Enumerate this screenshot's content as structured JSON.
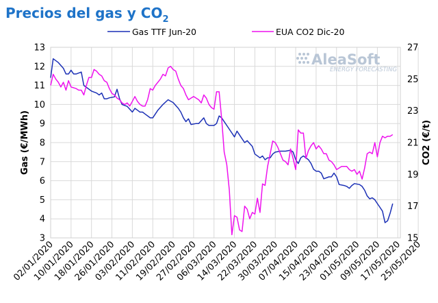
{
  "title": {
    "main": "Precios del gas y CO",
    "subscript": "2"
  },
  "branding": {
    "logo_text": "AleaSoft",
    "logo_tagline": "ENERGY FORECASTING"
  },
  "chart_data": {
    "type": "line",
    "title": "Precios del gas y CO2",
    "ylabel": "Gas (€/MWh)",
    "y2label": "CO2 (€/t)",
    "ylim": [
      3,
      13
    ],
    "y2lim": [
      15,
      27
    ],
    "y_ticks": [
      "3",
      "4",
      "5",
      "6",
      "7",
      "8",
      "9",
      "10",
      "11",
      "12",
      "13"
    ],
    "y2_ticks": [
      "15",
      "17",
      "19",
      "21",
      "23",
      "25",
      "27"
    ],
    "x_ticks": [
      "02/01/2020",
      "10/01/2020",
      "18/01/2020",
      "26/01/2020",
      "03/02/2020",
      "11/02/2020",
      "19/02/2020",
      "27/02/2020",
      "06/03/2020",
      "14/03/2020",
      "22/03/2020",
      "30/03/2020",
      "07/04/2020",
      "15/04/2020",
      "23/04/2020",
      "01/05/2020",
      "09/05/2020",
      "17/05/2020",
      "25/05/2020"
    ],
    "x_start": "02/01/2020",
    "x_end": "28/05/2020",
    "grid": true,
    "legend_position": "top",
    "series": [
      {
        "name": "Gas TTF Jun-20",
        "axis": "left",
        "color": "#1a2fb5",
        "points": [
          [
            0,
            11.4
          ],
          [
            1,
            12.4
          ],
          [
            3,
            12.2
          ],
          [
            5,
            11.9
          ],
          [
            6,
            11.6
          ],
          [
            7,
            11.6
          ],
          [
            8,
            11.8
          ],
          [
            9,
            11.6
          ],
          [
            10,
            11.6
          ],
          [
            12,
            11.7
          ],
          [
            13,
            11.0
          ],
          [
            14,
            10.9
          ],
          [
            16,
            10.7
          ],
          [
            18,
            10.6
          ],
          [
            19,
            10.5
          ],
          [
            20,
            10.6
          ],
          [
            21,
            10.3
          ],
          [
            22,
            10.3
          ],
          [
            23,
            10.35
          ],
          [
            25,
            10.4
          ],
          [
            26,
            10.8
          ],
          [
            27,
            10.3
          ],
          [
            28,
            10.0
          ],
          [
            30,
            9.9
          ],
          [
            32,
            9.6
          ],
          [
            33,
            9.8
          ],
          [
            34,
            9.7
          ],
          [
            35,
            9.6
          ],
          [
            36,
            9.6
          ],
          [
            37,
            9.5
          ],
          [
            39,
            9.3
          ],
          [
            40,
            9.3
          ],
          [
            42,
            9.7
          ],
          [
            44,
            10.0
          ],
          [
            46,
            10.25
          ],
          [
            48,
            10.1
          ],
          [
            50,
            9.8
          ],
          [
            51,
            9.6
          ],
          [
            52,
            9.3
          ],
          [
            53,
            9.1
          ],
          [
            54,
            9.25
          ],
          [
            55,
            8.95
          ],
          [
            57,
            9.0
          ],
          [
            58,
            9.0
          ],
          [
            60,
            9.3
          ],
          [
            61,
            9.0
          ],
          [
            62,
            8.9
          ],
          [
            64,
            8.9
          ],
          [
            65,
            9.0
          ],
          [
            66,
            9.4
          ],
          [
            67,
            9.3
          ],
          [
            68,
            9.1
          ],
          [
            69,
            8.9
          ],
          [
            70,
            8.7
          ],
          [
            72,
            8.3
          ],
          [
            73,
            8.6
          ],
          [
            75,
            8.2
          ],
          [
            76,
            8.0
          ],
          [
            77,
            8.1
          ],
          [
            79,
            7.8
          ],
          [
            80,
            7.4
          ],
          [
            82,
            7.2
          ],
          [
            83,
            7.3
          ],
          [
            84,
            7.1
          ],
          [
            85,
            7.2
          ],
          [
            86,
            7.2
          ],
          [
            87,
            7.4
          ],
          [
            88,
            7.5
          ],
          [
            90,
            7.55
          ],
          [
            92,
            7.55
          ],
          [
            94,
            7.6
          ],
          [
            95,
            7.5
          ],
          [
            96,
            7.1
          ],
          [
            97,
            6.9
          ],
          [
            98,
            7.2
          ],
          [
            99,
            7.3
          ],
          [
            101,
            7.1
          ],
          [
            102,
            6.9
          ],
          [
            103,
            6.6
          ],
          [
            104,
            6.5
          ],
          [
            105,
            6.5
          ],
          [
            106,
            6.4
          ],
          [
            107,
            6.1
          ],
          [
            109,
            6.2
          ],
          [
            110,
            6.2
          ],
          [
            111,
            6.4
          ],
          [
            112,
            6.2
          ],
          [
            113,
            5.8
          ],
          [
            115,
            5.75
          ],
          [
            116,
            5.7
          ],
          [
            117,
            5.6
          ],
          [
            118,
            5.75
          ],
          [
            119,
            5.85
          ],
          [
            121,
            5.8
          ],
          [
            122,
            5.7
          ],
          [
            123,
            5.5
          ],
          [
            124,
            5.2
          ],
          [
            125,
            5.05
          ],
          [
            126,
            5.1
          ],
          [
            127,
            5.0
          ],
          [
            128,
            4.8
          ],
          [
            129,
            4.6
          ],
          [
            130,
            4.4
          ],
          [
            131,
            3.8
          ],
          [
            132,
            3.9
          ],
          [
            133,
            4.3
          ],
          [
            134,
            4.8
          ]
        ]
      },
      {
        "name": "EUA CO2 Dic-20",
        "axis": "right",
        "color": "#ee11ee",
        "points": [
          [
            0,
            24.6
          ],
          [
            1,
            25.3
          ],
          [
            2,
            25.0
          ],
          [
            3,
            24.8
          ],
          [
            4,
            24.5
          ],
          [
            5,
            24.8
          ],
          [
            6,
            24.3
          ],
          [
            7,
            24.9
          ],
          [
            8,
            24.5
          ],
          [
            10,
            24.4
          ],
          [
            11,
            24.3
          ],
          [
            12,
            24.3
          ],
          [
            13,
            24.0
          ],
          [
            14,
            24.6
          ],
          [
            15,
            25.1
          ],
          [
            16,
            25.1
          ],
          [
            17,
            25.6
          ],
          [
            18,
            25.5
          ],
          [
            19,
            25.3
          ],
          [
            20,
            25.2
          ],
          [
            21,
            24.9
          ],
          [
            22,
            24.8
          ],
          [
            23,
            24.4
          ],
          [
            24,
            24.1
          ],
          [
            25,
            24.0
          ],
          [
            26,
            23.8
          ],
          [
            27,
            23.7
          ],
          [
            28,
            23.5
          ],
          [
            29,
            23.4
          ],
          [
            30,
            23.5
          ],
          [
            31,
            23.3
          ],
          [
            32,
            23.6
          ],
          [
            33,
            23.9
          ],
          [
            34,
            23.6
          ],
          [
            35,
            23.4
          ],
          [
            36,
            23.3
          ],
          [
            37,
            23.3
          ],
          [
            38,
            23.7
          ],
          [
            39,
            24.4
          ],
          [
            40,
            24.3
          ],
          [
            41,
            24.6
          ],
          [
            42,
            24.8
          ],
          [
            43,
            25.0
          ],
          [
            44,
            25.3
          ],
          [
            45,
            25.2
          ],
          [
            46,
            25.7
          ],
          [
            47,
            25.8
          ],
          [
            48,
            25.6
          ],
          [
            49,
            25.5
          ],
          [
            50,
            25.0
          ],
          [
            51,
            24.6
          ],
          [
            52,
            24.4
          ],
          [
            53,
            24.0
          ],
          [
            54,
            23.7
          ],
          [
            55,
            23.8
          ],
          [
            56,
            23.9
          ],
          [
            57,
            23.8
          ],
          [
            58,
            23.7
          ],
          [
            59,
            23.5
          ],
          [
            60,
            24.0
          ],
          [
            61,
            23.8
          ],
          [
            62,
            23.4
          ],
          [
            63,
            23.2
          ],
          [
            64,
            23.1
          ],
          [
            65,
            24.2
          ],
          [
            66,
            24.2
          ],
          [
            67,
            22.5
          ],
          [
            68,
            20.4
          ],
          [
            69,
            19.6
          ],
          [
            70,
            18.0
          ],
          [
            71,
            15.2
          ],
          [
            72,
            16.4
          ],
          [
            73,
            16.3
          ],
          [
            74,
            15.5
          ],
          [
            75,
            15.4
          ],
          [
            76,
            17.0
          ],
          [
            77,
            16.8
          ],
          [
            78,
            16.2
          ],
          [
            79,
            16.6
          ],
          [
            80,
            16.5
          ],
          [
            81,
            17.5
          ],
          [
            82,
            16.6
          ],
          [
            83,
            18.4
          ],
          [
            84,
            18.3
          ],
          [
            85,
            19.5
          ],
          [
            86,
            20.3
          ],
          [
            87,
            21.1
          ],
          [
            88,
            21.0
          ],
          [
            89,
            20.7
          ],
          [
            90,
            20.3
          ],
          [
            91,
            19.9
          ],
          [
            92,
            19.8
          ],
          [
            93,
            19.6
          ],
          [
            94,
            20.6
          ],
          [
            95,
            20.0
          ],
          [
            96,
            19.3
          ],
          [
            97,
            21.8
          ],
          [
            98,
            21.6
          ],
          [
            99,
            21.6
          ],
          [
            100,
            20.0
          ],
          [
            101,
            20.5
          ],
          [
            102,
            20.8
          ],
          [
            103,
            21.0
          ],
          [
            104,
            20.6
          ],
          [
            105,
            20.8
          ],
          [
            106,
            20.6
          ],
          [
            107,
            20.3
          ],
          [
            108,
            20.3
          ],
          [
            109,
            19.9
          ],
          [
            110,
            19.8
          ],
          [
            111,
            19.6
          ],
          [
            112,
            19.3
          ],
          [
            113,
            19.4
          ],
          [
            114,
            19.5
          ],
          [
            115,
            19.5
          ],
          [
            116,
            19.5
          ],
          [
            117,
            19.3
          ],
          [
            118,
            19.2
          ],
          [
            119,
            19.3
          ],
          [
            120,
            19.0
          ],
          [
            121,
            19.2
          ],
          [
            122,
            18.7
          ],
          [
            123,
            19.4
          ],
          [
            124,
            20.3
          ],
          [
            125,
            20.4
          ],
          [
            126,
            20.3
          ],
          [
            127,
            21.0
          ],
          [
            128,
            20.1
          ],
          [
            129,
            21.0
          ],
          [
            130,
            21.4
          ],
          [
            131,
            21.3
          ],
          [
            132,
            21.4
          ],
          [
            133,
            21.4
          ],
          [
            134,
            21.5
          ]
        ]
      }
    ]
  }
}
